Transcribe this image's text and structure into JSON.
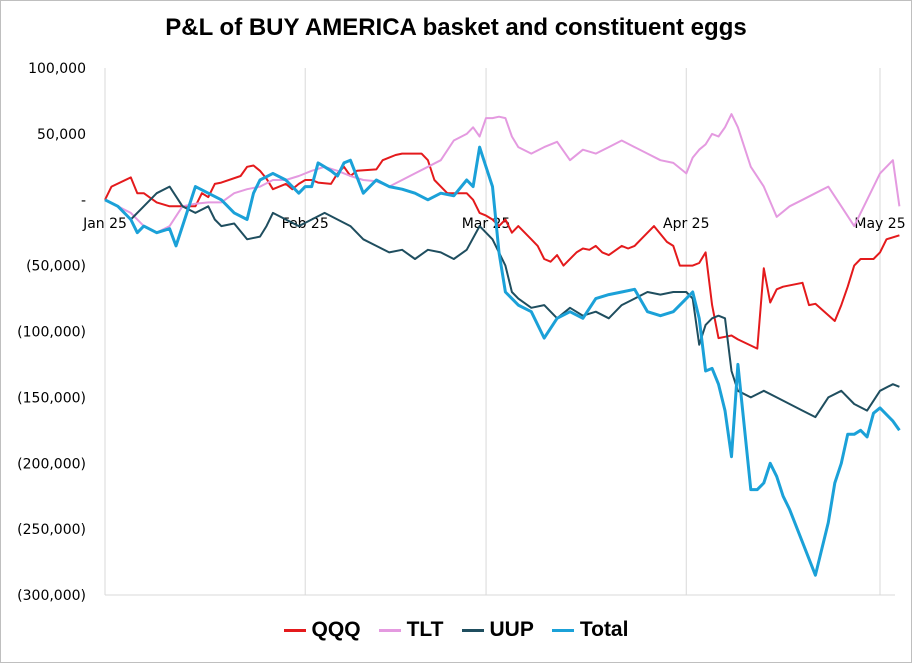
{
  "chart_data": {
    "type": "line",
    "title": "P&L of BUY AMERICA basket and constituent eggs",
    "xlabel": "",
    "ylabel": "",
    "ylim": [
      -300000,
      100000
    ],
    "yticks": [
      100000,
      50000,
      0,
      -50000,
      -100000,
      -150000,
      -200000,
      -250000,
      -300000
    ],
    "ytick_labels": [
      "100,000",
      "50,000",
      "-",
      "(50,000)",
      "(100,000)",
      "(150,000)",
      "(200,000)",
      "(250,000)",
      "(300,000)"
    ],
    "xlim": [
      0,
      120
    ],
    "xticks": [
      0,
      31,
      59,
      90,
      120
    ],
    "xtick_labels": [
      "Jan 25",
      "Feb 25",
      "Mar 25",
      "Apr 25",
      "May 25"
    ],
    "grid": "vertical",
    "legend_position": "bottom",
    "series": [
      {
        "name": "QQQ",
        "color": "#e41a1c",
        "x": [
          0,
          1,
          4,
          5,
          6,
          8,
          10,
          11,
          14,
          15,
          16,
          17,
          18,
          21,
          22,
          23,
          24,
          25,
          26,
          28,
          29,
          30,
          31,
          32,
          33,
          35,
          36,
          37,
          38,
          39,
          42,
          43,
          44,
          45,
          46,
          49,
          50,
          51,
          52,
          53,
          56,
          57,
          58,
          59,
          60,
          61,
          62,
          63,
          64,
          66,
          67,
          68,
          69,
          70,
          71,
          73,
          74,
          75,
          76,
          77,
          78,
          80,
          81,
          82,
          83,
          84,
          85,
          87,
          88,
          89,
          90,
          91,
          92,
          93,
          94,
          95,
          96,
          97,
          98,
          101,
          102,
          103,
          104,
          105,
          108,
          109,
          110,
          113,
          114,
          115,
          116,
          117,
          118,
          119,
          120
        ],
        "y": [
          0,
          10000,
          17000,
          5000,
          5000,
          -2000,
          -5000,
          -5000,
          -5000,
          5000,
          2000,
          12000,
          13000,
          18000,
          25000,
          26000,
          22000,
          16000,
          8000,
          12000,
          8000,
          12000,
          15000,
          15000,
          13000,
          12000,
          20000,
          25000,
          18000,
          22000,
          23000,
          30000,
          32000,
          34000,
          35000,
          35000,
          30000,
          15000,
          10000,
          5000,
          5000,
          0,
          -10000,
          -12000,
          -15000,
          -20000,
          -15000,
          -25000,
          -20000,
          -30000,
          -35000,
          -45000,
          -47000,
          -42000,
          -50000,
          -40000,
          -37000,
          -38000,
          -35000,
          -40000,
          -42000,
          -35000,
          -37000,
          -35000,
          -30000,
          -25000,
          -20000,
          -32000,
          -35000,
          -50000,
          -50000,
          -50000,
          -48000,
          -40000,
          -80000,
          -105000,
          -104000,
          -103000,
          -106000,
          -113000,
          -52000,
          -78000,
          -68000,
          -66000,
          -63000,
          -80000,
          -79000,
          -92000,
          -80000,
          -66000,
          -50000,
          -45000,
          -45000,
          -45000,
          -40000
        ],
        "x2": [
          120,
          121,
          123
        ],
        "y2": [
          -40000,
          -30000,
          -27000
        ]
      },
      {
        "name": "TLT",
        "color": "#e49ae0",
        "x": [
          0,
          2,
          4,
          6,
          8,
          10,
          12,
          14,
          16,
          18,
          20,
          22,
          24,
          26,
          28,
          30,
          32,
          34,
          36,
          38,
          40,
          42,
          44,
          46,
          48,
          50,
          52,
          54,
          56,
          57,
          58,
          59,
          60,
          61,
          62,
          63,
          64,
          66,
          68,
          70,
          72,
          74,
          76,
          78,
          80,
          82,
          84,
          86,
          88,
          90,
          91,
          92,
          93,
          94,
          95,
          96,
          97,
          98,
          100,
          102,
          104,
          106,
          108,
          110,
          112,
          114,
          116,
          118,
          120,
          122,
          123
        ],
        "y": [
          0,
          -5000,
          -10000,
          -20000,
          -25000,
          -20000,
          -5000,
          -3000,
          -2000,
          -2000,
          5000,
          8000,
          10000,
          15000,
          15000,
          18000,
          22000,
          25000,
          22000,
          18000,
          15000,
          14000,
          10000,
          15000,
          20000,
          25000,
          30000,
          45000,
          50000,
          55000,
          48000,
          62000,
          62000,
          63000,
          62000,
          48000,
          40000,
          35000,
          40000,
          44000,
          30000,
          38000,
          35000,
          40000,
          45000,
          40000,
          35000,
          30000,
          28000,
          20000,
          32000,
          38000,
          42000,
          50000,
          48000,
          55000,
          65000,
          55000,
          25000,
          10000,
          -13000,
          -5000,
          0,
          5000,
          10000,
          -5000,
          -20000,
          0,
          20000,
          30000,
          -5000
        ],
        "x2": [],
        "y2": []
      },
      {
        "name": "UUP",
        "color": "#1f4e5f",
        "x": [
          0,
          2,
          4,
          6,
          8,
          10,
          12,
          14,
          16,
          17,
          18,
          20,
          22,
          24,
          25,
          26,
          28,
          30,
          32,
          34,
          36,
          38,
          40,
          42,
          44,
          46,
          48,
          50,
          52,
          54,
          56,
          58,
          60,
          62,
          63,
          64,
          66,
          68,
          70,
          72,
          74,
          76,
          78,
          80,
          82,
          84,
          86,
          88,
          90,
          91,
          92,
          93,
          94,
          95,
          96,
          97,
          98,
          100,
          102,
          104,
          106,
          108,
          110,
          112,
          114,
          116,
          118,
          120,
          122,
          123
        ],
        "y": [
          0,
          -5000,
          -15000,
          -5000,
          5000,
          10000,
          -5000,
          -10000,
          -5000,
          -15000,
          -20000,
          -18000,
          -30000,
          -28000,
          -20000,
          -10000,
          -15000,
          -20000,
          -15000,
          -10000,
          -15000,
          -20000,
          -30000,
          -35000,
          -40000,
          -38000,
          -45000,
          -38000,
          -40000,
          -45000,
          -38000,
          -20000,
          -30000,
          -50000,
          -70000,
          -75000,
          -82000,
          -80000,
          -90000,
          -82000,
          -88000,
          -85000,
          -90000,
          -80000,
          -75000,
          -70000,
          -72000,
          -70000,
          -70000,
          -75000,
          -110000,
          -95000,
          -90000,
          -88000,
          -90000,
          -130000,
          -145000,
          -150000,
          -145000,
          -150000,
          -155000,
          -160000,
          -165000,
          -150000,
          -145000,
          -155000,
          -160000,
          -145000,
          -140000,
          -142000
        ],
        "x2": [],
        "y2": []
      },
      {
        "name": "Total",
        "color": "#1ba1d8",
        "x": [
          0,
          2,
          4,
          5,
          6,
          8,
          10,
          11,
          12,
          14,
          16,
          18,
          20,
          22,
          23,
          24,
          26,
          28,
          30,
          31,
          32,
          33,
          34,
          35,
          36,
          37,
          38,
          40,
          42,
          44,
          46,
          48,
          50,
          52,
          54,
          56,
          57,
          58,
          59,
          60,
          61,
          62,
          63,
          64,
          66,
          68,
          70,
          72,
          74,
          76,
          78,
          80,
          82,
          84,
          86,
          88,
          90,
          91,
          92,
          93,
          94,
          95,
          96,
          97,
          98,
          100,
          101,
          102,
          103,
          104,
          105,
          106,
          108,
          110,
          112,
          113,
          114,
          115,
          116,
          117,
          118,
          119,
          120,
          122,
          123
        ],
        "y": [
          0,
          -5000,
          -15000,
          -25000,
          -20000,
          -25000,
          -22000,
          -35000,
          -20000,
          10000,
          5000,
          0,
          -10000,
          -15000,
          5000,
          15000,
          20000,
          15000,
          5000,
          10000,
          10000,
          28000,
          25000,
          22000,
          18000,
          28000,
          30000,
          5000,
          15000,
          10000,
          8000,
          5000,
          0,
          5000,
          3000,
          15000,
          10000,
          40000,
          25000,
          10000,
          -40000,
          -70000,
          -75000,
          -80000,
          -85000,
          -105000,
          -90000,
          -85000,
          -90000,
          -75000,
          -72000,
          -70000,
          -68000,
          -85000,
          -88000,
          -85000,
          -75000,
          -70000,
          -90000,
          -130000,
          -128000,
          -140000,
          -160000,
          -195000,
          -125000,
          -220000,
          -220000,
          -215000,
          -200000,
          -210000,
          -225000,
          -235000,
          -260000,
          -285000,
          -245000,
          -215000,
          -200000,
          -178000,
          -178000,
          -175000,
          -180000,
          -162000,
          -158000,
          -168000,
          -175000
        ],
        "x2": [],
        "y2": []
      }
    ]
  }
}
